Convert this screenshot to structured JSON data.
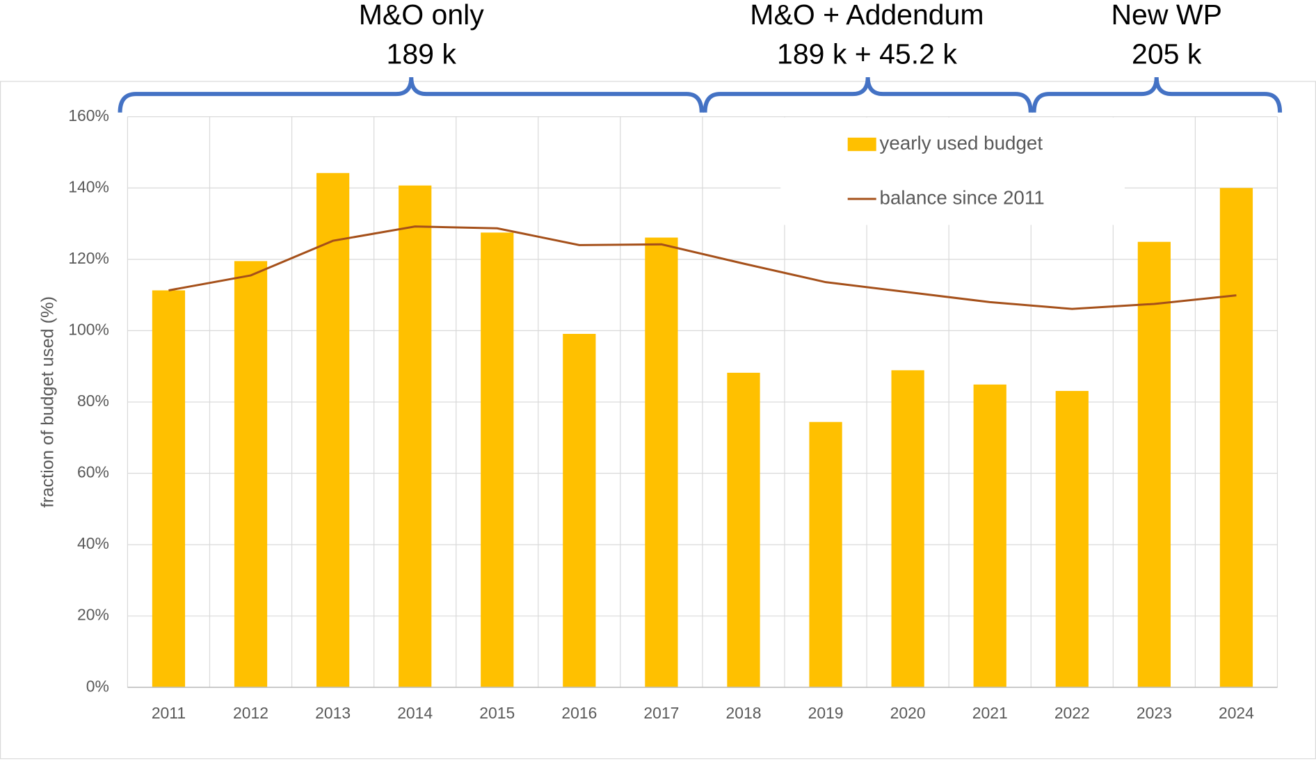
{
  "chart_data": {
    "type": "bar",
    "y_label": "fraction of budget used (%)",
    "categories": [
      "2011",
      "2012",
      "2013",
      "2014",
      "2015",
      "2016",
      "2017",
      "2018",
      "2019",
      "2020",
      "2021",
      "2022",
      "2023",
      "2024"
    ],
    "series": [
      {
        "name": "yearly used budget",
        "type": "bar",
        "color": "#ffc000",
        "values": [
          111.3,
          119.5,
          144.2,
          140.7,
          127.5,
          99.1,
          126.1,
          88.2,
          74.4,
          88.9,
          84.9,
          83.1,
          124.9,
          140.0
        ]
      },
      {
        "name": "balance since 2011",
        "type": "line",
        "color": "#a5501a",
        "values": [
          111.3,
          115.5,
          125.2,
          129.2,
          128.7,
          124.0,
          124.2,
          118.8,
          113.6,
          110.8,
          108.0,
          106.1,
          107.5,
          109.9
        ]
      }
    ],
    "ylim": [
      0,
      160
    ],
    "yticks": [
      {
        "value": 0,
        "label": "0%"
      },
      {
        "value": 20,
        "label": "20%"
      },
      {
        "value": 40,
        "label": "40%"
      },
      {
        "value": 60,
        "label": "60%"
      },
      {
        "value": 80,
        "label": "80%"
      },
      {
        "value": 100,
        "label": "100%"
      },
      {
        "value": 120,
        "label": "120%"
      },
      {
        "value": 140,
        "label": "140%"
      },
      {
        "value": 160,
        "label": "160%"
      }
    ],
    "grid": true,
    "annotations": [
      {
        "lines": [
          "M&O only",
          "189 k"
        ]
      },
      {
        "lines": [
          "M&O + Addendum",
          "189 k + 45.2 k"
        ]
      },
      {
        "lines": [
          "New WP",
          "205 k"
        ]
      }
    ]
  }
}
